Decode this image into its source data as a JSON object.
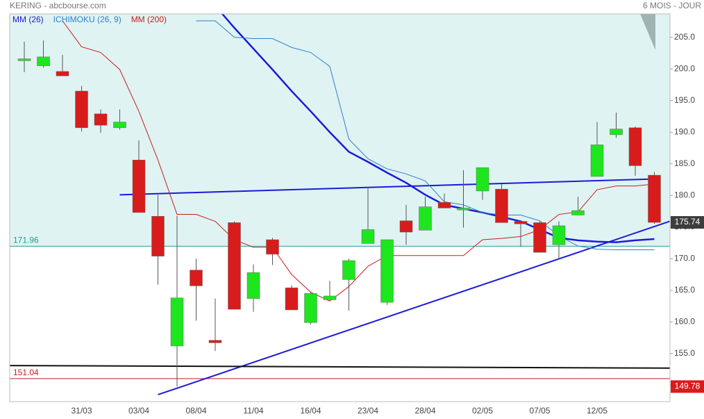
{
  "chart_data": {
    "type": "candlestick",
    "title": "KERING - abcbourse.com",
    "subtitle": "6 MOIS - JOUR",
    "categories": [
      null,
      null,
      null,
      "31/03",
      null,
      null,
      "03/04",
      null,
      null,
      "08/04",
      null,
      null,
      "11/04",
      null,
      null,
      "16/04",
      null,
      null,
      "23/04",
      null,
      null,
      "28/04",
      null,
      null,
      "02/05",
      null,
      null,
      "07/05",
      null,
      null,
      "12/05",
      null,
      null,
      null
    ],
    "open": [
      201.3,
      200.5,
      199.6,
      196.5,
      192.9,
      190.7,
      185.6,
      176.7,
      156.2,
      168.2,
      157.1,
      175.7,
      163.7,
      173.0,
      165.4,
      159.9,
      163.5,
      166.7,
      172.4,
      163.1,
      176.0,
      174.5,
      178.9,
      177.7,
      180.7,
      181.0,
      175.9,
      175.7,
      172.2,
      176.9,
      183.0,
      189.6,
      190.7,
      183.2
    ],
    "high": [
      204.3,
      204.5,
      202.2,
      197.3,
      193.6,
      193.6,
      188.7,
      180.1,
      176.8,
      170.0,
      163.7,
      175.9,
      169.1,
      173.3,
      165.8,
      164.8,
      166.5,
      170.0,
      181.4,
      173.0,
      178.5,
      179.8,
      180.3,
      184.0,
      184.4,
      181.8,
      175.9,
      175.9,
      175.9,
      179.8,
      191.6,
      193.1,
      190.9,
      183.7
    ],
    "low": [
      199.5,
      200.2,
      198.9,
      190.1,
      189.9,
      190.4,
      177.3,
      165.9,
      149.78,
      160.2,
      155.4,
      162.0,
      161.6,
      169.0,
      161.9,
      159.6,
      163.5,
      161.8,
      172.4,
      162.7,
      172.2,
      174.5,
      178.0,
      174.9,
      179.3,
      175.7,
      171.9,
      171.0,
      169.9,
      176.9,
      183.0,
      189.1,
      183.1,
      175.5
    ],
    "close": [
      201.6,
      201.9,
      198.9,
      190.7,
      191.1,
      191.6,
      177.3,
      170.4,
      163.8,
      165.7,
      156.7,
      162.0,
      167.8,
      170.7,
      161.9,
      164.5,
      164.1,
      169.7,
      174.6,
      173.0,
      174.2,
      178.2,
      178.0,
      178.0,
      184.4,
      175.7,
      175.5,
      171.0,
      175.2,
      177.6,
      188.0,
      190.5,
      184.7,
      175.74
    ],
    "up_color": "#1ee61e",
    "down_color": "#d81c1c",
    "series": [
      {
        "name": "MM (26)",
        "color": "#1a1ad8",
        "width": 2.5,
        "values": [
          null,
          null,
          null,
          null,
          null,
          null,
          null,
          null,
          null,
          null,
          210.0,
          206.5,
          203.2,
          199.9,
          196.5,
          193.3,
          190.0,
          186.9,
          185.3,
          183.6,
          182.0,
          180.1,
          178.5,
          177.9,
          177.3,
          176.6,
          175.9,
          174.6,
          173.3,
          172.9,
          172.7,
          172.6,
          172.9,
          173.1
        ]
      },
      {
        "name": "ICHIMOKU (26, 9)",
        "color": "#2f7fc9",
        "width": 1,
        "values": [
          null,
          null,
          null,
          null,
          null,
          null,
          null,
          null,
          null,
          207.6,
          207.6,
          205.0,
          204.8,
          204.8,
          203.4,
          202.6,
          200.4,
          188.9,
          185.8,
          184.2,
          183.4,
          182.3,
          179.0,
          178.5,
          177.3,
          176.9,
          176.9,
          176.0,
          173.6,
          172.0,
          171.5,
          171.4,
          171.4,
          171.4
        ]
      },
      {
        "name": "MM (200)",
        "color": "#c81c1c",
        "width": 1,
        "values": [
          null,
          null,
          207.6,
          203.5,
          202.6,
          199.9,
          193.3,
          185.6,
          177.0,
          177.0,
          175.9,
          173.0,
          171.8,
          171.8,
          167.5,
          164.7,
          163.3,
          165.6,
          168.8,
          170.5,
          170.5,
          170.5,
          170.5,
          170.5,
          173.0,
          173.2,
          173.5,
          174.6,
          177.0,
          177.4,
          180.9,
          181.5,
          181.5,
          181.8
        ]
      }
    ],
    "trendlines": [
      {
        "color": "#1a1ad8",
        "x": [
          5,
          33
        ],
        "values": [
          180.1,
          182.6
        ]
      },
      {
        "color": "#1a1ad8",
        "x": [
          7,
          33.8
        ],
        "values": [
          148.5,
          175.9
        ]
      },
      {
        "color": "#111111",
        "x": [
          -0.76,
          33.8
        ],
        "values": [
          153.1,
          152.7
        ]
      }
    ],
    "levels": [
      {
        "value": 171.96,
        "color": "#2a9a9a"
      },
      {
        "value": 151.04,
        "color": "#c81c1c"
      }
    ],
    "cloud_color": "#dff3f3",
    "ylim": [
      147.4,
      208.7
    ],
    "yticks": [
      {
        "value": 150,
        "label": "150.0"
      },
      {
        "value": 155,
        "label": "155.0"
      },
      {
        "value": 160,
        "label": "160.0"
      },
      {
        "value": 165,
        "label": "165.0"
      },
      {
        "value": 170,
        "label": "170.0"
      },
      {
        "value": 175,
        "label": "175.0"
      },
      {
        "value": 180,
        "label": "180.0"
      },
      {
        "value": 185,
        "label": "185.0"
      },
      {
        "value": 190,
        "label": "190.0"
      },
      {
        "value": 195,
        "label": "195.0"
      },
      {
        "value": 200,
        "label": "200.0"
      },
      {
        "value": 205,
        "label": "205.0"
      }
    ]
  }
}
